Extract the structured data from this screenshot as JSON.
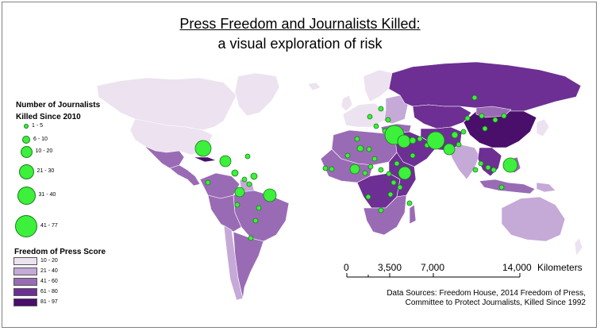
{
  "title": {
    "line1": "Press Freedom and Journalists Killed:",
    "line2": "a visual exploration of risk"
  },
  "legend_killed": {
    "title_line1": "Number of Journalists",
    "title_line2": "Killed Since 2010",
    "classes": [
      "1 - 5",
      "6 - 10",
      "10 - 20",
      "21 - 30",
      "31 - 40",
      "41 - 77"
    ]
  },
  "legend_press": {
    "title": "Freedom of Press Score",
    "classes": [
      {
        "label": "10 - 20",
        "color": "#ece2f0"
      },
      {
        "label": "21 - 40",
        "color": "#c5a9d6"
      },
      {
        "label": "41 - 60",
        "color": "#9a6bb5"
      },
      {
        "label": "61 - 80",
        "color": "#6d2f93"
      },
      {
        "label": "81 - 97",
        "color": "#4a0e6b"
      }
    ]
  },
  "scale_bar": {
    "ticks": [
      "0",
      "3,500",
      "7,000",
      "14,000"
    ],
    "unit": "Kilometers"
  },
  "sources": {
    "line1": "Data Sources: Freedom House, 2014 Freedom of Press,",
    "line2": "Committee to Protect Journalists, Killed Since 1992"
  },
  "colors": {
    "circle_fill": "#3cf03c",
    "circle_outline": "#1a7a1a",
    "country_border": "#ffffff"
  }
}
